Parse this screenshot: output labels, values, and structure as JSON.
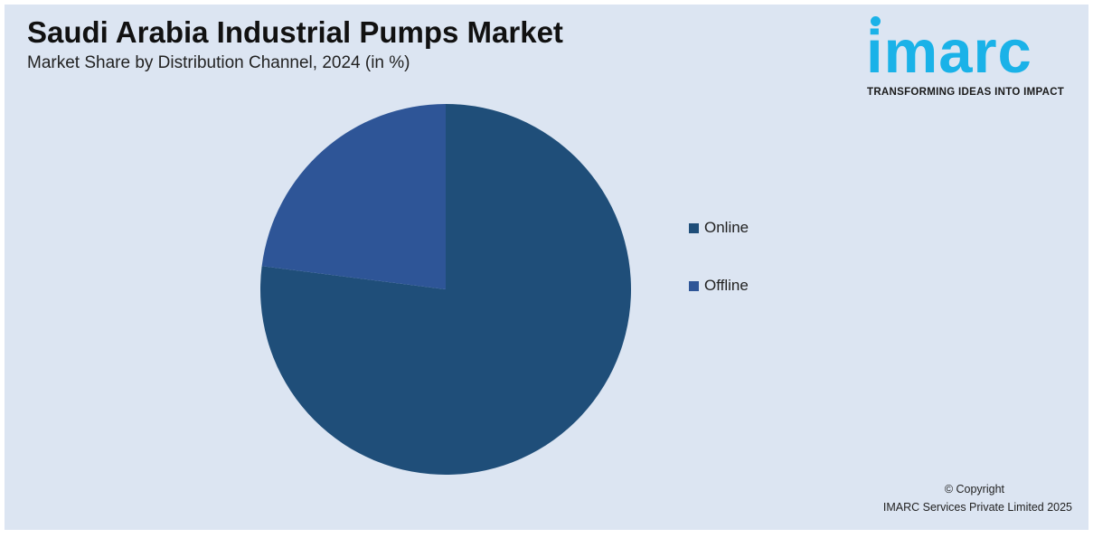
{
  "header": {
    "title": "Saudi Arabia Industrial Pumps Market",
    "subtitle": "Market Share by Distribution Channel, 2024 (in %)"
  },
  "logo": {
    "word": "imarc",
    "tagline": "TRANSFORMING IDEAS INTO IMPACT",
    "color": "#1ab2e8"
  },
  "footer": {
    "copyright_line1": "© Copyright",
    "copyright_line2": "IMARC Services Private Limited 2025"
  },
  "colors": {
    "background": "#dce5f2",
    "online": "#1f4e79",
    "offline": "#2e5597"
  },
  "chart_data": {
    "type": "pie",
    "title": "Saudi Arabia Industrial Pumps Market",
    "subtitle": "Market Share by Distribution Channel, 2024 (in %)",
    "categories": [
      "Online",
      "Offline"
    ],
    "values": [
      77,
      23
    ],
    "colors": [
      "#1f4e79",
      "#2e5597"
    ],
    "legend_position": "right",
    "start_angle": "12 o'clock, clockwise"
  }
}
